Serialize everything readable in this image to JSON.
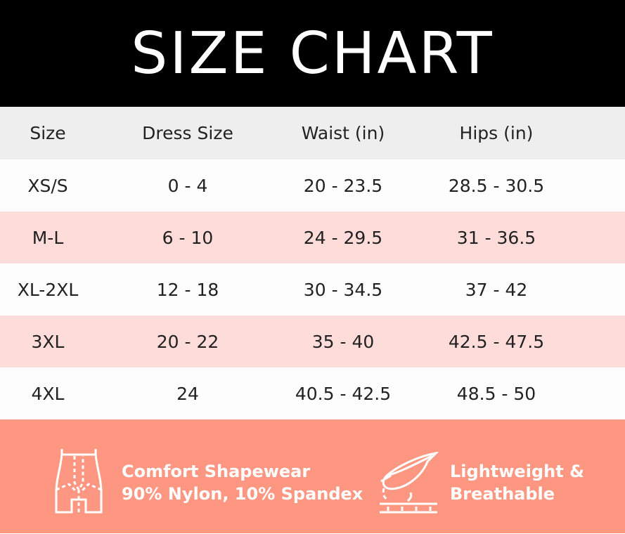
{
  "title": "SIZE CHART",
  "colors": {
    "header_bg": "#000000",
    "head_row_bg": "#eeeeee",
    "row_alt_bg": "#fddcda",
    "footer_bg": "#fd9782"
  },
  "chart_data": {
    "type": "table",
    "title": "SIZE CHART",
    "columns": [
      "Size",
      "Dress Size",
      "Waist (in)",
      "Hips (in)"
    ],
    "rows": [
      [
        "XS/S",
        "0 - 4",
        "20 - 23.5",
        "28.5 - 30.5"
      ],
      [
        "M-L",
        "6 - 10",
        "24 - 29.5",
        "31 - 36.5"
      ],
      [
        "XL-2XL",
        "12 - 18",
        "30 - 34.5",
        "37 - 42"
      ],
      [
        "3XL",
        "20 - 22",
        "35 - 40",
        "42.5 - 47.5"
      ],
      [
        "4XL",
        "24",
        "40.5 - 42.5",
        "48.5 - 50"
      ]
    ]
  },
  "footer": {
    "feature1": {
      "icon": "shapewear-icon",
      "line1": "Comfort Shapewear",
      "line2": "90% Nylon, 10% Spandex"
    },
    "feature2": {
      "icon": "feather-icon",
      "line1": "Lightweight &",
      "line2": "Breathable"
    }
  }
}
